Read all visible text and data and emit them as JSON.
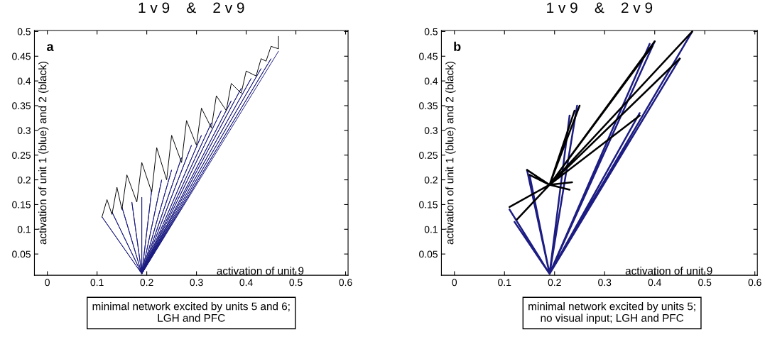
{
  "chart_data": [
    {
      "type": "line",
      "title": "1 v 9    &    2 v 9",
      "xlabel": "activation of unit 9",
      "ylabel": "activation of unit 1 (blue) and 2 (black)",
      "annotations": [
        "a",
        "minimal network excited by units 5 and 6;\nLGH and PFC"
      ],
      "xlim": [
        -0.026,
        0.605
      ],
      "ylim": [
        0.007,
        0.502
      ],
      "xticks": [
        0,
        0.1,
        0.2,
        0.3,
        0.4,
        0.5,
        0.6
      ],
      "yticks": [
        0.05,
        0.1,
        0.15,
        0.2,
        0.25,
        0.3,
        0.35,
        0.4,
        0.45,
        0.5
      ],
      "grid": false,
      "marker": "none",
      "line_style": "solid",
      "series": [
        {
          "color": "#1c1c82",
          "x": [
            0.19,
            0.11,
            0.19,
            0.13,
            0.19,
            0.15,
            0.19,
            0.17,
            0.19,
            0.19,
            0.19,
            0.21,
            0.19,
            0.23,
            0.19,
            0.25,
            0.19,
            0.27,
            0.19,
            0.29,
            0.19,
            0.31,
            0.19,
            0.33,
            0.19,
            0.35,
            0.19,
            0.37,
            0.19,
            0.39,
            0.19,
            0.41,
            0.19,
            0.43,
            0.19,
            0.45,
            0.19,
            0.465
          ],
          "values": [
            0.01,
            0.125,
            0.01,
            0.135,
            0.01,
            0.145,
            0.01,
            0.155,
            0.01,
            0.165,
            0.01,
            0.18,
            0.01,
            0.2,
            0.01,
            0.22,
            0.01,
            0.245,
            0.01,
            0.27,
            0.01,
            0.29,
            0.01,
            0.315,
            0.01,
            0.34,
            0.01,
            0.36,
            0.01,
            0.385,
            0.01,
            0.405,
            0.01,
            0.425,
            0.01,
            0.445,
            0.01,
            0.46
          ]
        },
        {
          "color": "#000000",
          "x": [
            0.11,
            0.12,
            0.13,
            0.14,
            0.15,
            0.16,
            0.18,
            0.19,
            0.21,
            0.22,
            0.24,
            0.25,
            0.27,
            0.28,
            0.3,
            0.31,
            0.33,
            0.34,
            0.36,
            0.37,
            0.39,
            0.4,
            0.42,
            0.43,
            0.44,
            0.45,
            0.465,
            0.465
          ],
          "values": [
            0.125,
            0.16,
            0.13,
            0.185,
            0.14,
            0.21,
            0.155,
            0.235,
            0.175,
            0.265,
            0.2,
            0.29,
            0.235,
            0.32,
            0.27,
            0.345,
            0.305,
            0.37,
            0.34,
            0.395,
            0.375,
            0.42,
            0.41,
            0.445,
            0.44,
            0.47,
            0.465,
            0.49
          ]
        }
      ]
    },
    {
      "type": "line",
      "title": "1 v 9    &    2 v 9",
      "xlabel": "activation of unit 9",
      "ylabel": "activation of unit 1 (blue) and 2 (black)",
      "annotations": [
        "b",
        "minimal network excited by units 5;\nno visual input; LGH and PFC"
      ],
      "xlim": [
        -0.026,
        0.605
      ],
      "ylim": [
        0.007,
        0.502
      ],
      "xticks": [
        0,
        0.1,
        0.2,
        0.3,
        0.4,
        0.5,
        0.6
      ],
      "yticks": [
        0.05,
        0.1,
        0.15,
        0.2,
        0.25,
        0.3,
        0.35,
        0.4,
        0.45,
        0.5
      ],
      "grid": false,
      "marker": "none",
      "line_style": "solid",
      "series": [
        {
          "color": "#1c1c82",
          "x": [
            0.19,
            0.11,
            0.19,
            0.12,
            0.19,
            0.15,
            0.19,
            0.145,
            0.19,
            0.23,
            0.19,
            0.245,
            0.19,
            0.39,
            0.19,
            0.4,
            0.19,
            0.475,
            0.19,
            0.37,
            0.19,
            0.45
          ],
          "values": [
            0.01,
            0.14,
            0.01,
            0.115,
            0.01,
            0.21,
            0.01,
            0.22,
            0.01,
            0.33,
            0.01,
            0.35,
            0.01,
            0.475,
            0.01,
            0.48,
            0.01,
            0.5,
            0.01,
            0.335,
            0.01,
            0.445
          ]
        },
        {
          "color": "#000000",
          "x": [
            0.19,
            0.11,
            0.19,
            0.125,
            0.19,
            0.145,
            0.19,
            0.15,
            0.19,
            0.235,
            0.19,
            0.23,
            0.19,
            0.24,
            0.19,
            0.25,
            0.19,
            0.4,
            0.19,
            0.395,
            0.19,
            0.475,
            0.19,
            0.45,
            0.19,
            0.37
          ],
          "values": [
            0.19,
            0.145,
            0.19,
            0.12,
            0.19,
            0.22,
            0.19,
            0.21,
            0.19,
            0.195,
            0.19,
            0.18,
            0.19,
            0.34,
            0.19,
            0.35,
            0.19,
            0.48,
            0.19,
            0.47,
            0.19,
            0.5,
            0.19,
            0.445,
            0.19,
            0.33
          ]
        }
      ]
    }
  ]
}
